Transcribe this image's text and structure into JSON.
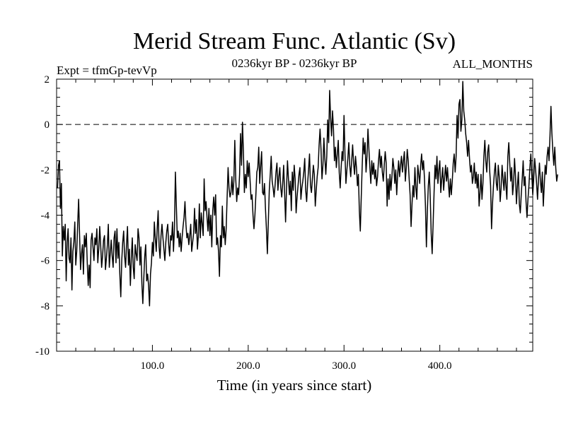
{
  "chart_data": {
    "type": "line",
    "title": "Merid Stream Func. Atlantic (Sv)",
    "experiment_label": "Expt = tfmGp-tevVp",
    "period_label": "0236kyr BP - 0236kyr BP",
    "season_label": "ALL_MONTHS",
    "xlabel": "Time (in years since start)",
    "ylabel": "",
    "xlim": [
      0,
      497
    ],
    "ylim": [
      -10,
      2
    ],
    "x_ticks": [
      100,
      200,
      300,
      400
    ],
    "x_tick_labels": [
      "100.0",
      "200.0",
      "300.0",
      "400.0"
    ],
    "y_ticks": [
      2,
      0,
      -2,
      -4,
      -6,
      -8,
      -10
    ],
    "y_tick_labels": [
      "2",
      "0",
      "-2",
      "-4",
      "-6",
      "-8",
      "-10"
    ],
    "reference_line": {
      "y": 0,
      "style": "dashed"
    },
    "grid": false,
    "series": [
      {
        "color": "#000000",
        "x_start": 1,
        "x_step": 1,
        "values": [
          -2.8,
          -1.8,
          -1.6,
          -3.7,
          -2.6,
          -5.8,
          -4.5,
          -5.1,
          -4.4,
          -6.9,
          -5.2,
          -4.6,
          -5.9,
          -6.1,
          -5.0,
          -7.3,
          -5.6,
          -5.2,
          -4.3,
          -6.2,
          -5.6,
          -4.4,
          -3.3,
          -4.9,
          -6.4,
          -5.7,
          -5.3,
          -6.6,
          -4.9,
          -5.4,
          -4.8,
          -6.1,
          -7.1,
          -6.2,
          -7.2,
          -5.1,
          -4.8,
          -5.4,
          -6.0,
          -5.0,
          -5.3,
          -4.6,
          -6.1,
          -5.5,
          -4.5,
          -5.3,
          -6.3,
          -5.8,
          -5.1,
          -4.9,
          -6.4,
          -5.9,
          -5.3,
          -4.4,
          -6.3,
          -5.7,
          -5.1,
          -5.8,
          -6.3,
          -5.0,
          -4.7,
          -6.1,
          -4.6,
          -5.9,
          -5.2,
          -6.6,
          -7.6,
          -6.0,
          -5.2,
          -4.7,
          -5.8,
          -6.3,
          -5.3,
          -4.5,
          -6.2,
          -5.5,
          -7.1,
          -5.9,
          -5.0,
          -6.3,
          -6.8,
          -5.3,
          -5.7,
          -6.0,
          -4.6,
          -5.0,
          -6.2,
          -5.4,
          -7.0,
          -7.9,
          -6.8,
          -5.8,
          -5.3,
          -6.9,
          -6.6,
          -7.1,
          -8.0,
          -6.6,
          -6.1,
          -5.2,
          -5.8,
          -4.3,
          -5.0,
          -5.6,
          -4.6,
          -3.8,
          -5.4,
          -5.9,
          -4.9,
          -4.4,
          -5.0,
          -5.5,
          -6.0,
          -5.2,
          -4.7,
          -4.4,
          -5.3,
          -5.8,
          -4.9,
          -5.1,
          -4.3,
          -5.6,
          -4.6,
          -2.1,
          -3.6,
          -5.0,
          -4.7,
          -5.4,
          -4.8,
          -5.6,
          -5.0,
          -4.5,
          -4.1,
          -3.4,
          -4.4,
          -5.0,
          -4.8,
          -5.3,
          -4.9,
          -4.4,
          -5.6,
          -5.2,
          -4.8,
          -3.7,
          -4.8,
          -4.2,
          -5.5,
          -4.9,
          -3.5,
          -5.0,
          -3.9,
          -4.4,
          -4.9,
          -2.4,
          -3.8,
          -3.4,
          -4.1,
          -4.7,
          -3.7,
          -4.9,
          -4.0,
          -5.4,
          -3.8,
          -3.2,
          -4.0,
          -3.1,
          -5.3,
          -5.0,
          -5.6,
          -6.7,
          -4.9,
          -5.4,
          -3.6,
          -5.0,
          -4.5,
          -5.3,
          -4.6,
          -3.2,
          -1.9,
          -2.8,
          -3.2,
          -3.0,
          -2.3,
          -3.1,
          -2.5,
          -0.7,
          -2.4,
          -3.4,
          -2.8,
          -3.1,
          -2.2,
          -0.4,
          -1.8,
          0.1,
          -1.2,
          -3.0,
          -2.2,
          -2.8,
          -1.6,
          -2.3,
          -1.7,
          -2.5,
          -3.3,
          -3.1,
          -4.0,
          -4.6,
          -4.0,
          -3.1,
          -2.1,
          -1.9,
          -1.0,
          -2.6,
          -1.8,
          -1.2,
          -3.0,
          -3.1,
          -2.6,
          -3.7,
          -4.6,
          -5.7,
          -4.3,
          -2.9,
          -2.2,
          -1.4,
          -2.5,
          -2.8,
          -3.2,
          -2.7,
          -2.1,
          -1.7,
          -2.9,
          -2.3,
          -1.9,
          -2.8,
          -3.2,
          -2.6,
          -1.8,
          -3.0,
          -4.3,
          -2.8,
          -1.6,
          -2.4,
          -3.1,
          -2.5,
          -3.8,
          -2.1,
          -2.9,
          -1.8,
          -2.4,
          -3.9,
          -3.2,
          -2.7,
          -2.2,
          -1.9,
          -3.3,
          -2.8,
          -2.5,
          -2.1,
          -1.5,
          -2.9,
          -3.4,
          -2.6,
          -2.0,
          -1.3,
          -2.7,
          -3.0,
          -2.4,
          -1.8,
          -2.2,
          -3.6,
          -2.9,
          -2.3,
          -1.9,
          -0.9,
          -0.2,
          -1.1,
          -2.4,
          -1.8,
          -0.6,
          -1.5,
          -2.2,
          -1.4,
          0.2,
          -0.8,
          1.5,
          0.3,
          -0.5,
          0.6,
          -0.2,
          -1.6,
          -1.0,
          -1.9,
          -1.3,
          -0.7,
          -2.1,
          -2.8,
          -1.9,
          -1.2,
          -1.6,
          0.4,
          -1.3,
          -2.6,
          -2.0,
          -1.5,
          -0.8,
          -1.8,
          -2.3,
          -1.6,
          -0.9,
          -1.7,
          -2.2,
          -1.4,
          -1.9,
          -2.7,
          -2.2,
          -3.8,
          -4.7,
          -3.2,
          -1.8,
          -0.6,
          -1.3,
          -0.8,
          -2.1,
          -1.4,
          -0.2,
          -1.1,
          -1.9,
          -2.6,
          -1.6,
          -2.2,
          -1.7,
          -2.4,
          -2.0,
          -2.7,
          -2.3,
          -1.6,
          -1.1,
          -1.9,
          -1.4,
          -2.1,
          -2.5,
          -1.8,
          -1.2,
          -1.7,
          -3.6,
          -2.4,
          -3.3,
          -2.2,
          -2.9,
          -2.3,
          -1.5,
          -1.9,
          -2.6,
          -2.0,
          -3.1,
          -2.2,
          -1.6,
          -2.3,
          -1.8,
          -1.4,
          -2.1,
          -1.6,
          -1.2,
          -2.5,
          -1.9,
          -1.1,
          -1.6,
          -2.4,
          -3.1,
          -4.5,
          -3.5,
          -2.7,
          -3.2,
          -1.9,
          -2.8,
          -3.3,
          -1.8,
          -2.2,
          -2.6,
          -1.8,
          -1.3,
          -2.0,
          -1.6,
          -2.4,
          -3.6,
          -5.4,
          -3.8,
          -2.7,
          -2.1,
          -3.2,
          -4.8,
          -5.7,
          -4.4,
          -3.0,
          -1.8,
          -2.4,
          -1.4,
          -2.6,
          -2.0,
          -1.6,
          -3.0,
          -2.4,
          -1.9,
          -2.9,
          -2.3,
          -1.8,
          -2.5,
          -1.9,
          -2.6,
          -3.2,
          -2.4,
          -3.1,
          -2.5,
          -1.7,
          -1.3,
          -2.1,
          -1.4,
          0.4,
          -0.6,
          0.9,
          1.1,
          -0.3,
          0.2,
          1.9,
          0.6,
          0.2,
          -0.4,
          -0.8,
          -1.4,
          -0.7,
          -1.5,
          -2.1,
          -1.8,
          -2.6,
          -2.3,
          -1.7,
          -2.6,
          -2.1,
          -2.8,
          -2.2,
          -3.6,
          -3.0,
          -2.2,
          -3.3,
          -2.6,
          -1.4,
          -0.7,
          -1.6,
          -2.1,
          -1.2,
          -0.9,
          -2.0,
          -2.7,
          -4.6,
          -3.5,
          -2.7,
          -2.1,
          -1.7,
          -2.6,
          -2.9,
          -1.8,
          -2.3,
          -3.4,
          -2.8,
          -1.8,
          -2.4,
          -2.9,
          -2.1,
          -2.7,
          -3.3,
          -1.4,
          -0.8,
          -1.7,
          -2.5,
          -1.9,
          -3.1,
          -2.6,
          -1.5,
          -2.3,
          -3.5,
          -2.7,
          -2.1,
          -3.5,
          -3.9,
          -3.1,
          -2.4,
          -1.6,
          -2.7,
          -2.3,
          -3.4,
          -4.1,
          -3.3,
          -2.7,
          -1.9,
          -1.3,
          -2.2,
          -3.1,
          -2.4,
          -1.5,
          -2.0,
          -2.6,
          -3.3,
          -2.4,
          -1.7,
          -2.5,
          -3.0,
          -2.1,
          -3.6,
          -2.7,
          -1.8,
          -2.2,
          -1.4,
          -1.0,
          -1.6,
          -0.5,
          0.8,
          -0.4,
          -1.2,
          -1.8,
          -1.0,
          -1.9,
          -2.5,
          -2.2
        ]
      }
    ]
  }
}
